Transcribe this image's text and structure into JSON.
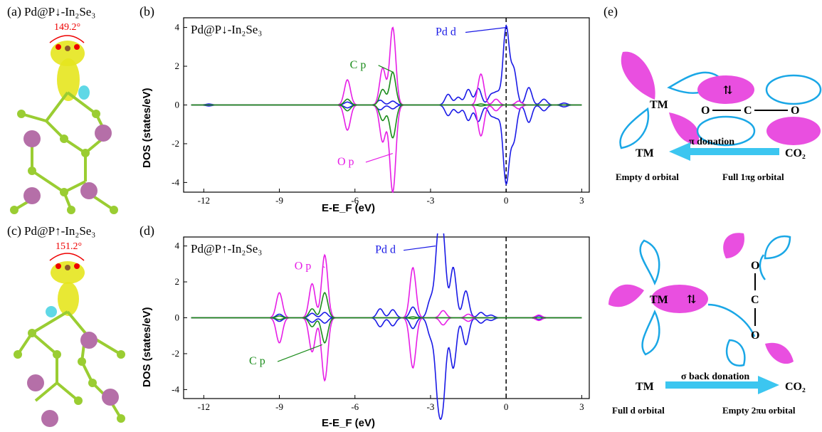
{
  "panels": {
    "a": {
      "label": "(a)",
      "title": "Pd@P↓-In₂Se₃",
      "angle": "149.2°"
    },
    "b": {
      "label": "(b)",
      "title": "Pd@P↓-In₂Se₃"
    },
    "c": {
      "label": "(c)",
      "title": "Pd@P↑-In₂Se₃",
      "angle": "151.2°"
    },
    "d": {
      "label": "(d)",
      "title": "Pd@P↑-In₂Se₃"
    },
    "e": {
      "label": "(e)"
    }
  },
  "chart_data": [
    {
      "type": "line",
      "panel": "b",
      "title": "Pd@P↓-In₂Se₃",
      "xlabel": "E-E_F (eV)",
      "ylabel": "DOS (states/eV)",
      "xlim": [
        -12.8,
        3.3
      ],
      "ylim": [
        -4.5,
        4.5
      ],
      "xticks": [
        -12,
        -9,
        -6,
        -3,
        0,
        3
      ],
      "yticks": [
        -4,
        -2,
        0,
        2,
        4
      ],
      "fermi_level": 0,
      "annotations": [
        {
          "text": "Pd d",
          "series": "Pd d"
        },
        {
          "text": "C p",
          "series": "C p"
        },
        {
          "text": "O p",
          "series": "O p"
        }
      ],
      "series": [
        {
          "name": "Pd d",
          "color": "#1a1ae6",
          "peaks_up": [
            [
              -11.8,
              0.05
            ],
            [
              -6.3,
              0.15
            ],
            [
              -5.0,
              0.25
            ],
            [
              -4.5,
              0.2
            ],
            [
              -2.3,
              0.55
            ],
            [
              -1.9,
              0.4
            ],
            [
              -1.5,
              0.8
            ],
            [
              -1.1,
              0.85
            ],
            [
              -0.6,
              0.5
            ],
            [
              -0.35,
              0.6
            ],
            [
              0.0,
              4.0
            ],
            [
              0.3,
              1.8
            ],
            [
              0.9,
              0.9
            ],
            [
              1.5,
              0.3
            ],
            [
              2.3,
              0.1
            ]
          ],
          "peaks_down": [
            [
              -11.8,
              -0.05
            ],
            [
              -6.3,
              -0.15
            ],
            [
              -5.0,
              -0.25
            ],
            [
              -4.5,
              -0.2
            ],
            [
              -2.3,
              -0.55
            ],
            [
              -1.9,
              -0.4
            ],
            [
              -1.5,
              -0.8
            ],
            [
              -1.1,
              -0.85
            ],
            [
              -0.6,
              -0.5
            ],
            [
              -0.35,
              -0.6
            ],
            [
              0.0,
              -4.0
            ],
            [
              0.3,
              -1.8
            ],
            [
              0.9,
              -0.9
            ],
            [
              1.5,
              -0.3
            ],
            [
              2.3,
              -0.1
            ]
          ]
        },
        {
          "name": "C p",
          "color": "#1b8c1b",
          "peaks_up": [
            [
              -6.3,
              0.3
            ],
            [
              -4.9,
              0.8
            ],
            [
              -4.5,
              1.7
            ],
            [
              -1.0,
              0.05
            ]
          ],
          "peaks_down": [
            [
              -6.3,
              -0.3
            ],
            [
              -4.9,
              -0.8
            ],
            [
              -4.5,
              -1.7
            ],
            [
              -1.0,
              -0.05
            ]
          ]
        },
        {
          "name": "O p",
          "color": "#e61ee6",
          "peaks_up": [
            [
              -6.3,
              1.3
            ],
            [
              -4.9,
              1.9
            ],
            [
              -4.5,
              4.0
            ],
            [
              -1.0,
              1.6
            ],
            [
              -0.4,
              0.3
            ],
            [
              0.5,
              0.2
            ]
          ],
          "peaks_down": [
            [
              -6.3,
              -1.3
            ],
            [
              -4.9,
              -1.9
            ],
            [
              -4.5,
              -4.5
            ],
            [
              -1.0,
              -1.6
            ],
            [
              -0.4,
              -0.3
            ],
            [
              0.5,
              -0.2
            ]
          ]
        }
      ]
    },
    {
      "type": "line",
      "panel": "d",
      "title": "Pd@P↑-In₂Se₃",
      "xlabel": "E-E_F (eV)",
      "ylabel": "DOS (states/eV)",
      "xlim": [
        -12.8,
        3.3
      ],
      "ylim": [
        -4.5,
        4.5
      ],
      "xticks": [
        -12,
        -9,
        -6,
        -3,
        0,
        3
      ],
      "yticks": [
        -4,
        -2,
        0,
        2,
        4
      ],
      "fermi_level": 0,
      "annotations": [
        {
          "text": "Pd d",
          "series": "Pd d"
        },
        {
          "text": "O p",
          "series": "O p"
        },
        {
          "text": "C p",
          "series": "C p"
        }
      ],
      "series": [
        {
          "name": "Pd d",
          "color": "#1a1ae6",
          "peaks_up": [
            [
              -9.0,
              0.2
            ],
            [
              -7.7,
              0.25
            ],
            [
              -7.2,
              0.3
            ],
            [
              -5.0,
              0.5
            ],
            [
              -4.5,
              0.45
            ],
            [
              -3.7,
              0.6
            ],
            [
              -3.0,
              1.0
            ],
            [
              -2.7,
              4.0
            ],
            [
              -2.5,
              4.0
            ],
            [
              -2.1,
              2.8
            ],
            [
              -1.6,
              1.5
            ],
            [
              -1.0,
              0.3
            ],
            [
              -0.6,
              0.15
            ],
            [
              1.3,
              0.1
            ]
          ],
          "peaks_down": [
            [
              -9.0,
              -0.2
            ],
            [
              -7.7,
              -0.25
            ],
            [
              -7.2,
              -0.3
            ],
            [
              -5.0,
              -0.5
            ],
            [
              -4.5,
              -0.45
            ],
            [
              -3.7,
              -0.6
            ],
            [
              -3.0,
              -1.0
            ],
            [
              -2.7,
              -4.0
            ],
            [
              -2.5,
              -4.0
            ],
            [
              -2.1,
              -2.8
            ],
            [
              -1.6,
              -1.5
            ],
            [
              -1.0,
              -0.3
            ],
            [
              -0.6,
              -0.15
            ],
            [
              1.3,
              -0.1
            ]
          ]
        },
        {
          "name": "C p",
          "color": "#1b8c1b",
          "peaks_up": [
            [
              -9.0,
              0.1
            ],
            [
              -7.7,
              0.5
            ],
            [
              -7.2,
              1.4
            ],
            [
              -3.7,
              0.05
            ]
          ],
          "peaks_down": [
            [
              -9.0,
              -0.1
            ],
            [
              -7.7,
              -0.5
            ],
            [
              -7.2,
              -1.4
            ],
            [
              -3.7,
              -0.05
            ]
          ]
        },
        {
          "name": "O p",
          "color": "#e61ee6",
          "peaks_up": [
            [
              -9.0,
              1.4
            ],
            [
              -7.7,
              1.9
            ],
            [
              -7.2,
              3.5
            ],
            [
              -3.7,
              2.8
            ],
            [
              -2.5,
              0.4
            ],
            [
              -1.5,
              0.2
            ],
            [
              1.3,
              0.15
            ]
          ],
          "peaks_down": [
            [
              -9.0,
              -1.4
            ],
            [
              -7.7,
              -1.9
            ],
            [
              -7.2,
              -3.5
            ],
            [
              -3.7,
              -2.8
            ],
            [
              -2.5,
              -0.4
            ],
            [
              -1.5,
              -0.2
            ],
            [
              1.3,
              -0.15
            ]
          ]
        }
      ]
    }
  ],
  "schematic_top": {
    "tm": "TM",
    "o_left": "O",
    "c": "C",
    "o_right": "O",
    "arrow_label": "π donation",
    "left": "TM",
    "right": "CO₂",
    "left_sub": "Empty d orbital",
    "right_sub": "Full 1πg orbital",
    "spin": "⇅"
  },
  "schematic_bottom": {
    "tm": "TM",
    "o_top": "O",
    "c": "C",
    "o_bottom": "O",
    "arrow_label": "σ back donation",
    "left": "TM",
    "right": "CO₂",
    "left_sub": "Full d orbital",
    "right_sub": "Empty 2πu orbital",
    "spin": "⇅"
  },
  "colors": {
    "magenta": "#e94fe0",
    "cyan": "#1aa7e6",
    "arrow": "#3cc6f0"
  }
}
